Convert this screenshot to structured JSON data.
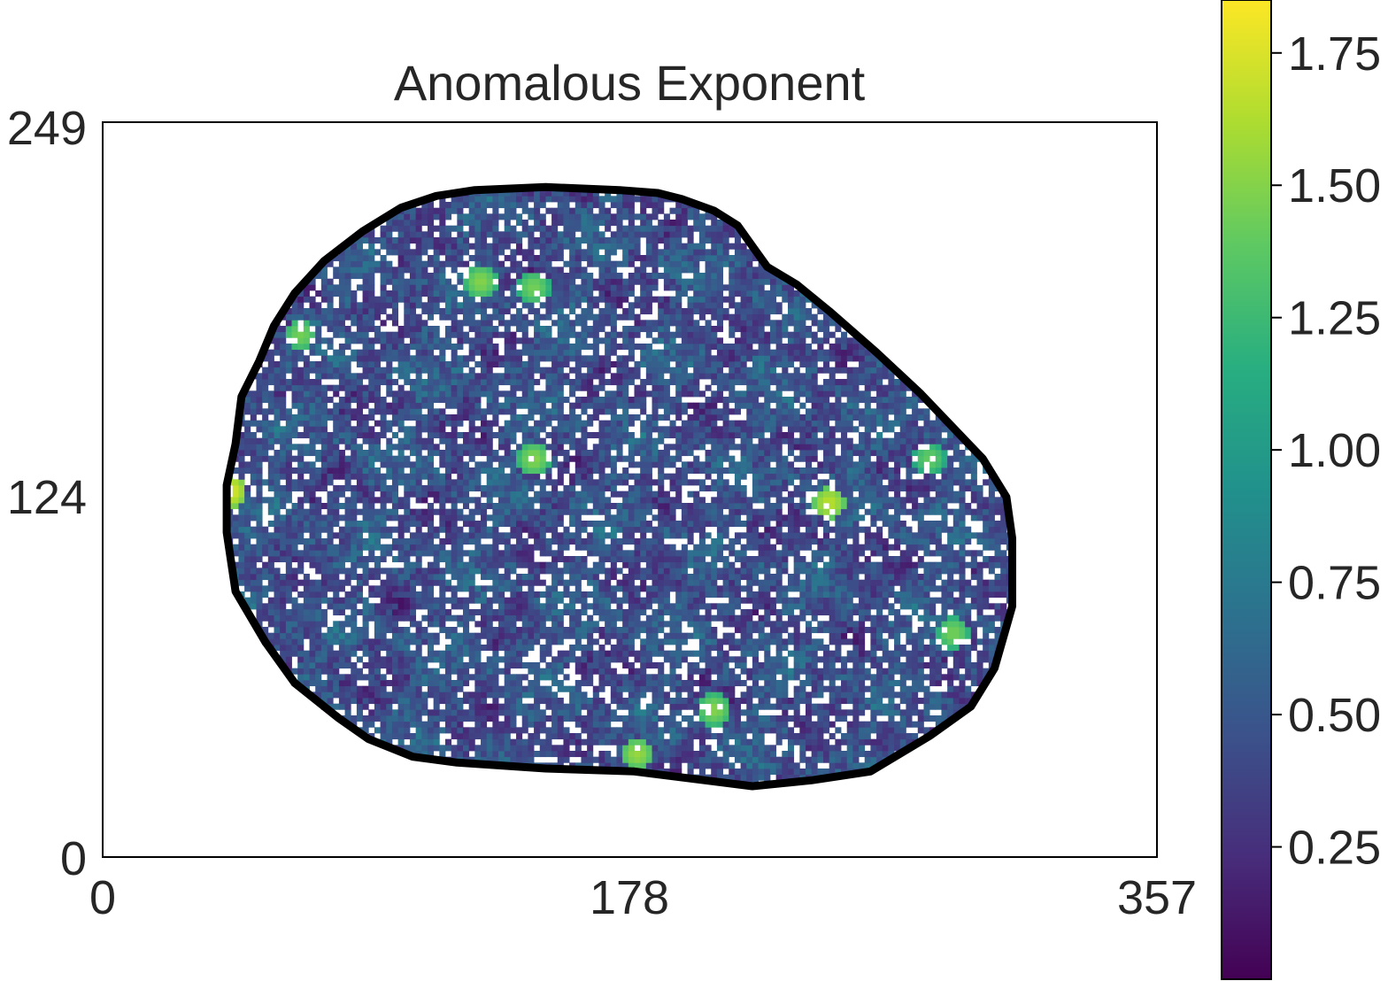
{
  "chart_data": {
    "type": "heatmap",
    "title": "Anomalous Exponent",
    "xlabel": "",
    "ylabel": "",
    "xlim": [
      0,
      357
    ],
    "ylim": [
      0,
      249
    ],
    "x_ticks": [
      "0",
      "178",
      "357"
    ],
    "y_ticks": [
      "0",
      "124",
      "249"
    ],
    "colormap": "viridis",
    "colorbar": {
      "range": [
        0.0,
        1.85
      ],
      "ticks": [
        0.25,
        0.5,
        0.75,
        1.0,
        1.25,
        1.5,
        1.75
      ],
      "tick_labels": [
        "0.25",
        "0.50",
        "0.75",
        "1.00",
        "1.25",
        "1.50",
        "1.75"
      ]
    },
    "mask": {
      "outline_color": "#000000",
      "boundary": [
        [
          126,
          226
        ],
        [
          150,
          227
        ],
        [
          175,
          226
        ],
        [
          188,
          225
        ],
        [
          196,
          223
        ],
        [
          207,
          219
        ],
        [
          215,
          214
        ],
        [
          220,
          207
        ],
        [
          225,
          200
        ],
        [
          235,
          194
        ],
        [
          246,
          185
        ],
        [
          262,
          171
        ],
        [
          277,
          157
        ],
        [
          298,
          135
        ],
        [
          306,
          122
        ],
        [
          308,
          108
        ],
        [
          308,
          85
        ],
        [
          302,
          64
        ],
        [
          294,
          51
        ],
        [
          280,
          41
        ],
        [
          260,
          29
        ],
        [
          240,
          26
        ],
        [
          220,
          24
        ],
        [
          180,
          29
        ],
        [
          150,
          30
        ],
        [
          120,
          32
        ],
        [
          105,
          34
        ],
        [
          90,
          40
        ],
        [
          80,
          47
        ],
        [
          65,
          59
        ],
        [
          55,
          73
        ],
        [
          45,
          90
        ],
        [
          42,
          110
        ],
        [
          42,
          126
        ],
        [
          45,
          140
        ],
        [
          47,
          156
        ],
        [
          53,
          168
        ],
        [
          58,
          180
        ],
        [
          65,
          191
        ],
        [
          75,
          202
        ],
        [
          88,
          212
        ],
        [
          101,
          220
        ],
        [
          113,
          224
        ]
      ],
      "hotspots": [
        {
          "x": 67,
          "y": 177,
          "value": 1.45
        },
        {
          "x": 43,
          "y": 124,
          "value": 1.75
        },
        {
          "x": 128,
          "y": 195,
          "value": 1.5
        },
        {
          "x": 146,
          "y": 193,
          "value": 1.45
        },
        {
          "x": 146,
          "y": 135,
          "value": 1.5
        },
        {
          "x": 246,
          "y": 120,
          "value": 1.65
        },
        {
          "x": 181,
          "y": 35,
          "value": 1.55
        },
        {
          "x": 207,
          "y": 50,
          "value": 1.5
        },
        {
          "x": 288,
          "y": 76,
          "value": 1.45
        },
        {
          "x": 280,
          "y": 135,
          "value": 1.4
        }
      ]
    }
  }
}
